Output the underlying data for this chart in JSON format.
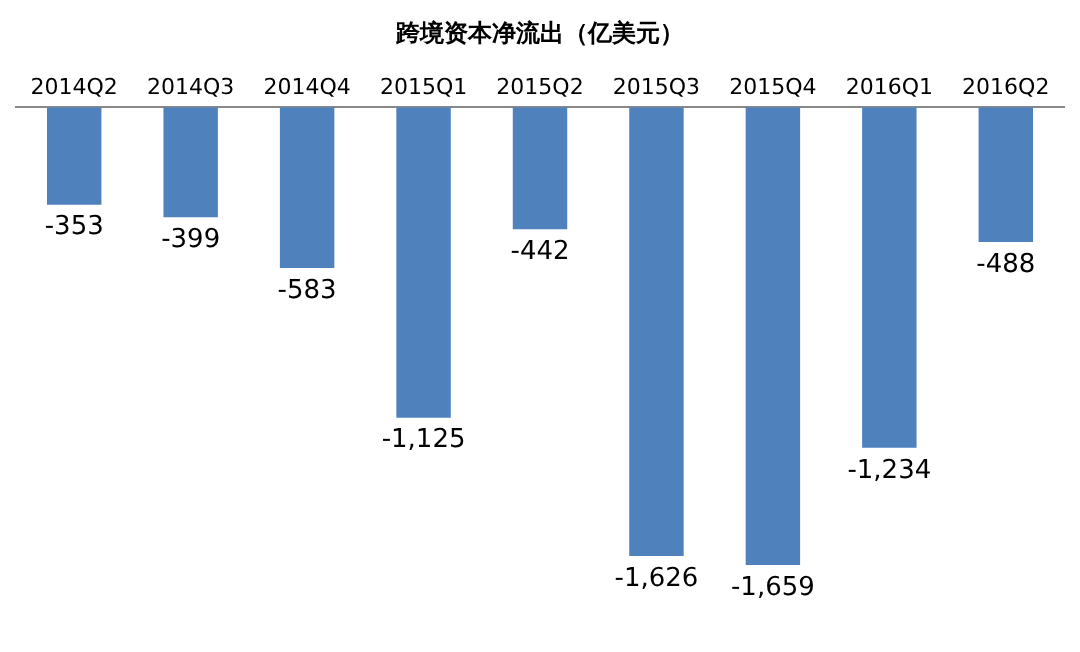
{
  "chart_data": {
    "type": "bar",
    "title": "跨境资本净流出（亿美元）",
    "categories": [
      "2014Q2",
      "2014Q3",
      "2014Q4",
      "2015Q1",
      "2015Q2",
      "2015Q3",
      "2015Q4",
      "2016Q1",
      "2016Q2"
    ],
    "values": [
      -353,
      -399,
      -583,
      -1125,
      -442,
      -1626,
      -1659,
      -1234,
      -488
    ],
    "value_labels": [
      "-353",
      "-399",
      "-583",
      "-1,125",
      "-442",
      "-1,626",
      "-1,659",
      "-1,234",
      "-488"
    ],
    "color": "#4f81bd",
    "tick_labels": "x",
    "grid": false,
    "legend": false
  }
}
